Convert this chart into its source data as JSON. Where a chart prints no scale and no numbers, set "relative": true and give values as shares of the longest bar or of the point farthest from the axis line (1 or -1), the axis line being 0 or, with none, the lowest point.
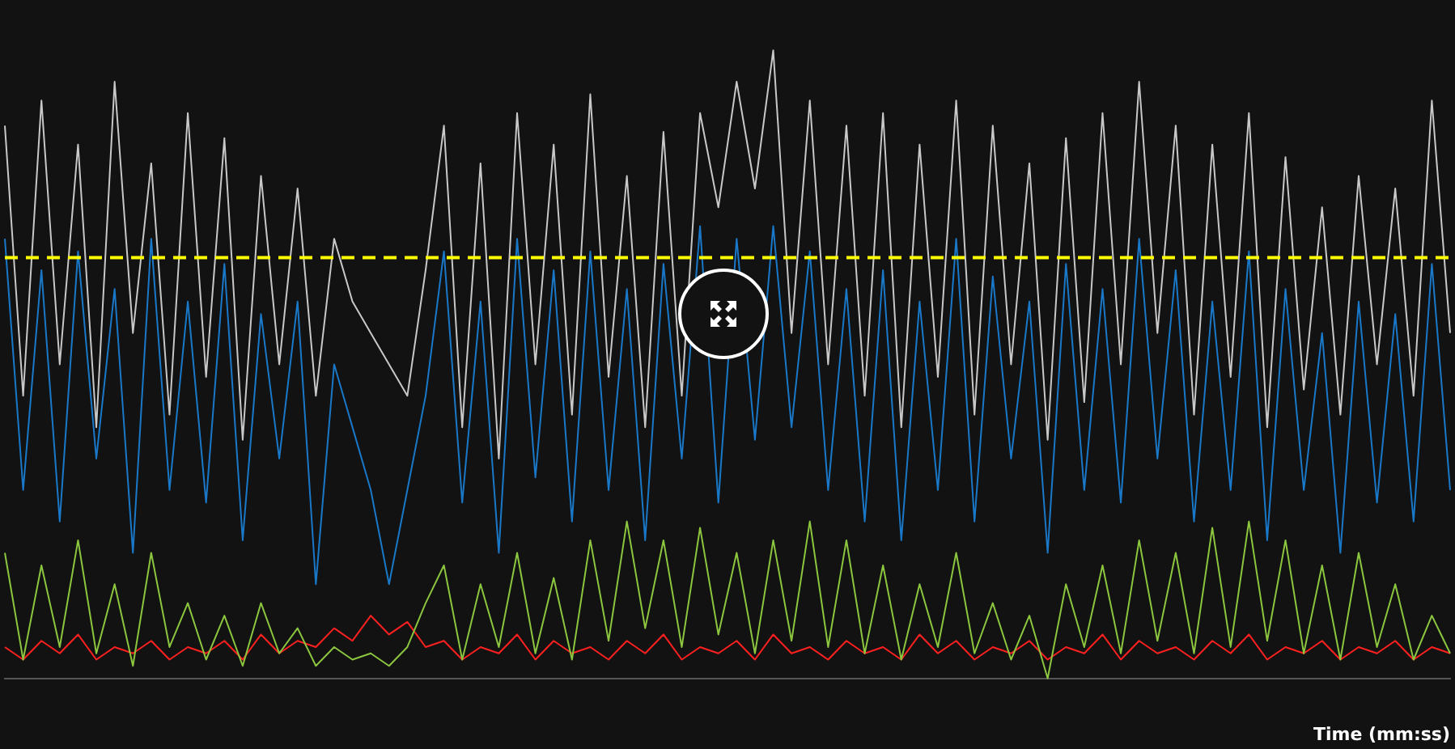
{
  "chart_data": {
    "type": "line",
    "relative": true,
    "xlabel": "Time (mm:ss)",
    "legend": false,
    "grid": false,
    "marker": "none",
    "line_style": "solid",
    "categories": [
      null,
      null,
      null,
      null,
      null,
      null,
      null,
      null,
      null,
      null,
      null,
      null,
      null,
      null,
      null,
      null,
      null,
      null,
      null,
      null,
      null,
      null,
      null,
      null,
      null,
      null,
      null,
      null,
      null,
      null,
      null,
      null,
      null,
      null,
      null,
      null,
      null,
      null,
      null,
      null,
      null,
      null,
      null,
      null,
      null,
      null,
      null,
      null,
      null,
      null,
      null,
      null,
      null,
      null,
      null,
      null,
      null,
      null,
      null,
      null,
      null,
      null,
      null,
      null,
      null,
      null,
      null,
      null,
      null,
      null,
      null,
      null,
      null,
      null,
      null,
      null,
      null,
      null,
      null,
      null
    ],
    "series": [
      {
        "color": "#c8c8c8",
        "values": [
          0.88,
          0.45,
          0.92,
          0.5,
          0.85,
          0.4,
          0.95,
          0.55,
          0.82,
          0.42,
          0.9,
          0.48,
          0.86,
          0.38,
          0.8,
          0.5,
          0.78,
          0.45,
          0.7,
          0.6,
          0.55,
          0.5,
          0.45,
          0.65,
          0.88,
          0.4,
          0.82,
          0.35,
          0.9,
          0.5,
          0.85,
          0.42,
          0.93,
          0.48,
          0.8,
          0.4,
          0.87,
          0.45,
          0.9,
          0.75,
          0.95,
          0.78,
          1,
          0.55,
          0.92,
          0.5,
          0.88,
          0.45,
          0.9,
          0.4,
          0.85,
          0.48,
          0.92,
          0.42,
          0.88,
          0.5,
          0.82,
          0.38,
          0.86,
          0.44,
          0.9,
          0.5,
          0.95,
          0.55,
          0.88,
          0.42,
          0.85,
          0.48,
          0.9,
          0.4,
          0.83,
          0.46,
          0.75,
          0.42,
          0.8,
          0.5,
          0.78,
          0.45,
          0.92,
          0.55
        ]
      },
      {
        "color": "#1a78c8",
        "values": [
          0.7,
          0.3,
          0.65,
          0.25,
          0.68,
          0.35,
          0.62,
          0.2,
          0.7,
          0.3,
          0.6,
          0.28,
          0.66,
          0.22,
          0.58,
          0.35,
          0.6,
          0.15,
          0.5,
          0.4,
          0.3,
          0.15,
          0.3,
          0.45,
          0.68,
          0.28,
          0.6,
          0.2,
          0.7,
          0.32,
          0.65,
          0.25,
          0.68,
          0.3,
          0.62,
          0.22,
          0.66,
          0.35,
          0.72,
          0.28,
          0.7,
          0.38,
          0.72,
          0.4,
          0.68,
          0.3,
          0.62,
          0.25,
          0.65,
          0.22,
          0.6,
          0.3,
          0.7,
          0.25,
          0.64,
          0.35,
          0.6,
          0.2,
          0.66,
          0.3,
          0.62,
          0.28,
          0.7,
          0.35,
          0.65,
          0.25,
          0.6,
          0.3,
          0.68,
          0.22,
          0.62,
          0.3,
          0.55,
          0.2,
          0.6,
          0.28,
          0.58,
          0.25,
          0.66,
          0.3
        ]
      },
      {
        "color": "#8cc63f",
        "values": [
          0.2,
          0.03,
          0.18,
          0.05,
          0.22,
          0.04,
          0.15,
          0.02,
          0.2,
          0.05,
          0.12,
          0.03,
          0.1,
          0.02,
          0.12,
          0.04,
          0.08,
          0.02,
          0.05,
          0.03,
          0.04,
          0.02,
          0.05,
          0.12,
          0.18,
          0.03,
          0.15,
          0.05,
          0.2,
          0.04,
          0.16,
          0.03,
          0.22,
          0.06,
          0.25,
          0.08,
          0.22,
          0.05,
          0.24,
          0.07,
          0.2,
          0.04,
          0.22,
          0.06,
          0.25,
          0.05,
          0.22,
          0.04,
          0.18,
          0.03,
          0.15,
          0.05,
          0.2,
          0.04,
          0.12,
          0.03,
          0.1,
          0,
          0.15,
          0.05,
          0.18,
          0.04,
          0.22,
          0.06,
          0.2,
          0.04,
          0.24,
          0.05,
          0.25,
          0.06,
          0.22,
          0.04,
          0.18,
          0.03,
          0.2,
          0.05,
          0.15,
          0.03,
          0.1,
          0.04
        ]
      },
      {
        "color": "#ff2020",
        "values": [
          0.05,
          0.03,
          0.06,
          0.04,
          0.07,
          0.03,
          0.05,
          0.04,
          0.06,
          0.03,
          0.05,
          0.04,
          0.06,
          0.03,
          0.07,
          0.04,
          0.06,
          0.05,
          0.08,
          0.06,
          0.1,
          0.07,
          0.09,
          0.05,
          0.06,
          0.03,
          0.05,
          0.04,
          0.07,
          0.03,
          0.06,
          0.04,
          0.05,
          0.03,
          0.06,
          0.04,
          0.07,
          0.03,
          0.05,
          0.04,
          0.06,
          0.03,
          0.07,
          0.04,
          0.05,
          0.03,
          0.06,
          0.04,
          0.05,
          0.03,
          0.07,
          0.04,
          0.06,
          0.03,
          0.05,
          0.04,
          0.06,
          0.03,
          0.05,
          0.04,
          0.07,
          0.03,
          0.06,
          0.04,
          0.05,
          0.03,
          0.06,
          0.04,
          0.07,
          0.03,
          0.05,
          0.04,
          0.06,
          0.03,
          0.05,
          0.04,
          0.06,
          0.03,
          0.05,
          0.04
        ]
      }
    ],
    "ref_lines": [
      {
        "axis": "y",
        "value": 0.67,
        "color": "#ffff00",
        "line_style": "dashed"
      }
    ]
  }
}
